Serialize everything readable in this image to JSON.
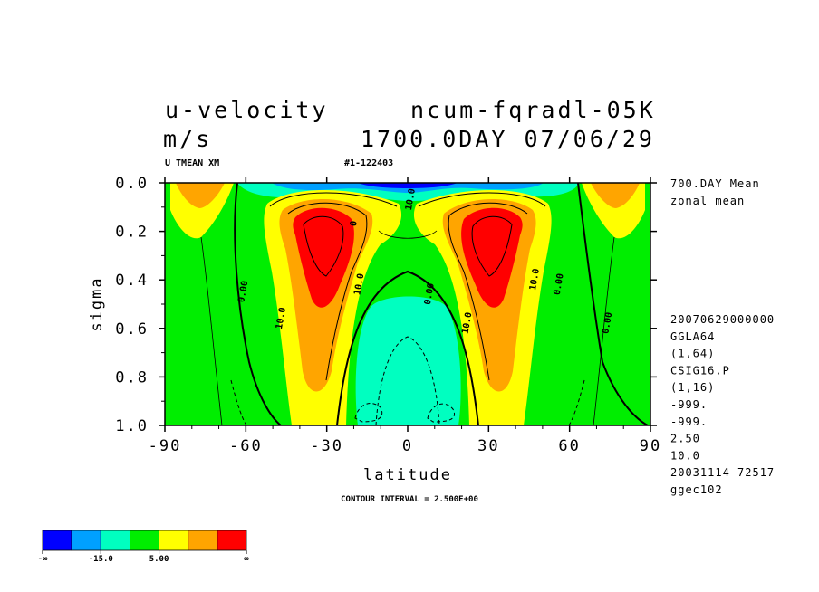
{
  "header": {
    "variable": "u-velocity",
    "experiment": "ncum-fqradl-05K",
    "units": "m/s",
    "date_label": "1700.0DAY 07/06/29",
    "field_tag": "U TMEAN XM",
    "run_id": "#1-122403"
  },
  "side_info": {
    "mean_label_1": "700.DAY Mean",
    "mean_label_2": "zonal mean",
    "lines": [
      "20070629000000",
      "GGLA64",
      "(1,64)",
      "CSIG16.P",
      "(1,16)",
      "-999.",
      "-999.",
      "2.50",
      "10.0",
      "20031114  72517",
      "ggec102"
    ]
  },
  "footer": {
    "contour_interval": "CONTOUR INTERVAL = 2.500E+00"
  },
  "colorbar": {
    "colors": [
      "#0000ff",
      "#00a0ff",
      "#00ffc0",
      "#00ee00",
      "#ffff00",
      "#ffa500",
      "#ff0000"
    ],
    "labels": [
      "-∞",
      "-15.0",
      "5.00",
      "∞"
    ]
  },
  "chart_data": {
    "type": "contour",
    "title": "u-velocity",
    "xlabel": "latitude",
    "ylabel": "sigma",
    "xlim": [
      -90,
      90
    ],
    "ylim": [
      0.0,
      1.0
    ],
    "y_inverted": true,
    "x_ticks": [
      -90,
      -60,
      -30,
      0,
      30,
      60,
      90
    ],
    "x_tick_labels": [
      "-90",
      "-60",
      "-30",
      "0",
      "30",
      "60",
      "90"
    ],
    "y_ticks": [
      0.0,
      0.2,
      0.4,
      0.6,
      0.8,
      1.0
    ],
    "y_tick_labels": [
      "0.0",
      "0.2",
      "0.4",
      "0.6",
      "0.8",
      "1.0"
    ],
    "contour_interval": 2.5,
    "contour_labels": [
      {
        "text": "10.0",
        "lat": -46,
        "sigma": 0.56
      },
      {
        "text": "10.0",
        "lat": -17,
        "sigma": 0.42
      },
      {
        "text": "10.0",
        "lat": 23,
        "sigma": 0.58
      },
      {
        "text": "10.0",
        "lat": 48,
        "sigma": 0.4
      },
      {
        "text": "0.00",
        "lat": -60,
        "sigma": 0.45
      },
      {
        "text": "0.00",
        "lat": 9,
        "sigma": 0.46
      },
      {
        "text": "0.00",
        "lat": 57,
        "sigma": 0.42
      },
      {
        "text": "0.00",
        "lat": 75,
        "sigma": 0.58
      },
      {
        "text": "10.0",
        "lat": 2,
        "sigma": 0.07
      },
      {
        "text": "0",
        "lat": -19,
        "sigma": 0.17
      }
    ],
    "features": [
      {
        "kind": "westerly-jet-max",
        "lat": -33,
        "sigma": 0.25,
        "value": 27.5
      },
      {
        "kind": "westerly-jet-max",
        "lat": 33,
        "sigma": 0.25,
        "value": 27.5
      },
      {
        "kind": "polar-westerly",
        "lat": -78,
        "sigma": 0.03,
        "value": 12.5
      },
      {
        "kind": "polar-westerly",
        "lat": 78,
        "sigma": 0.03,
        "value": 12.5
      },
      {
        "kind": "easterly",
        "lat": 0,
        "sigma": 0.7,
        "value": -5.0
      },
      {
        "kind": "easterly-upper",
        "lat": 0,
        "sigma": 0.02,
        "value": -20.0
      }
    ]
  }
}
